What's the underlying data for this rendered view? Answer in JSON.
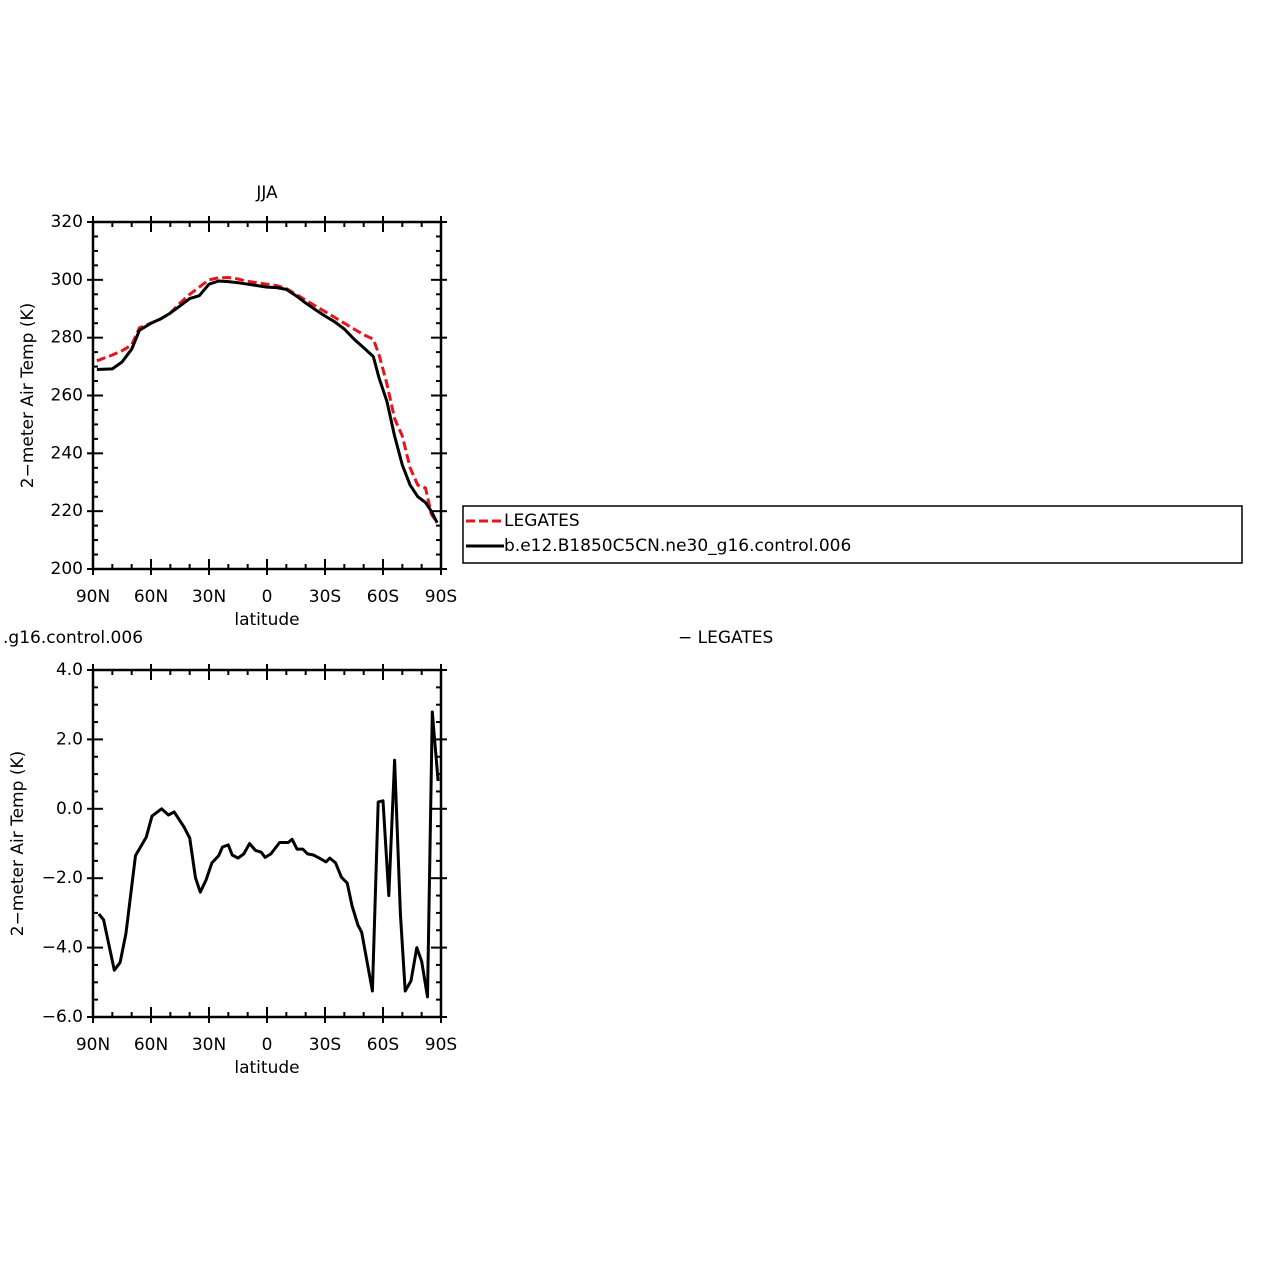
{
  "chart_data": [
    {
      "type": "line",
      "title": "JJA",
      "ylabel": "2−meter Air Temp (K)",
      "xlabel": "latitude",
      "x": [
        88,
        80,
        75,
        70,
        66,
        60,
        55,
        50,
        45,
        40,
        35,
        30,
        25,
        20,
        15,
        10,
        5,
        0,
        -5,
        -10,
        -15,
        -20,
        -25,
        -30,
        -35,
        -40,
        -45,
        -50,
        -55,
        -58,
        -62,
        -66,
        -70,
        -74,
        -78,
        -82,
        -85,
        -88
      ],
      "xlim": [
        90,
        -90
      ],
      "xticks": [
        {
          "value": 90,
          "label": "90N"
        },
        {
          "value": 60,
          "label": "60N"
        },
        {
          "value": 30,
          "label": "30N"
        },
        0,
        {
          "value": -30,
          "label": "30S"
        },
        {
          "value": -60,
          "label": "60S"
        },
        {
          "value": -90,
          "label": "90S"
        }
      ],
      "ylim": [
        200,
        320
      ],
      "yticks": [
        200,
        220,
        240,
        260,
        280,
        300,
        320
      ],
      "legend": "right",
      "series": [
        {
          "name": "LEGATES",
          "color": "#e8141b",
          "dashed": true,
          "values": [
            272,
            274,
            275.5,
            277.5,
            283.4,
            285,
            286.5,
            288.5,
            292,
            295,
            297.5,
            300,
            300.7,
            300.8,
            300.3,
            299.5,
            299,
            298.5,
            298,
            297,
            295,
            293,
            291,
            289,
            287,
            285,
            283,
            281,
            279.5,
            274,
            264,
            252,
            246,
            235,
            229,
            228,
            219,
            216
          ]
        },
        {
          "name": "b.e12.B1850C5CN.ne30_g16.control.006",
          "color": "#000000",
          "dashed": false,
          "values": [
            269,
            269.2,
            271.6,
            276,
            282.5,
            285,
            286.5,
            288.5,
            291,
            293.5,
            294.5,
            298.5,
            299.6,
            299.4,
            299,
            298.5,
            298,
            297.5,
            297.3,
            296.7,
            294.5,
            292,
            289.7,
            287.5,
            285.5,
            283,
            279.5,
            276.5,
            273.5,
            266,
            258,
            246,
            236,
            229,
            225,
            223,
            220,
            216
          ]
        }
      ]
    },
    {
      "type": "line",
      "title_left": ".g16.control.006",
      "title_right": "− LEGATES",
      "ylabel": "2−meter Air Temp (K)",
      "xlabel": "latitude",
      "x": [
        87,
        84.5,
        79,
        76,
        73,
        68,
        62.5,
        59.5,
        54.5,
        51,
        48,
        43,
        40,
        37,
        34.5,
        31.5,
        28.5,
        25,
        23,
        20,
        18,
        15,
        12,
        9,
        6,
        3,
        1,
        -2,
        -6.5,
        -11,
        -13,
        -15.5,
        -18.5,
        -21,
        -24,
        -27,
        -30.5,
        -32.5,
        -35.5,
        -38.5,
        -41.5,
        -44,
        -47,
        -49,
        -54.5,
        -57.5,
        -60,
        -63,
        -66,
        -69,
        -71.5,
        -74.5,
        -77.5,
        -80,
        -83,
        -85.5,
        -88.5
      ],
      "xlim": [
        90,
        -90
      ],
      "xticks": [
        {
          "value": 90,
          "label": "90N"
        },
        {
          "value": 60,
          "label": "60N"
        },
        {
          "value": 30,
          "label": "30N"
        },
        0,
        {
          "value": -30,
          "label": "30S"
        },
        {
          "value": -60,
          "label": "60S"
        },
        {
          "value": -90,
          "label": "90S"
        }
      ],
      "ylim": [
        -6,
        4
      ],
      "yticks": [
        {
          "value": -6,
          "label": "−6.0"
        },
        {
          "value": -4,
          "label": "−4.0"
        },
        {
          "value": -2,
          "label": "−2.0"
        },
        {
          "value": 0,
          "label": "0.0"
        },
        {
          "value": 2,
          "label": "2.0"
        },
        {
          "value": 4,
          "label": "4.0"
        }
      ],
      "color": "#000000",
      "values": [
        -3.03,
        -3.2,
        -4.65,
        -4.43,
        -3.6,
        -1.35,
        -0.82,
        -0.21,
        0,
        -0.18,
        -0.09,
        -0.52,
        -0.84,
        -1.99,
        -2.4,
        -2.05,
        -1.56,
        -1.35,
        -1.1,
        -1.04,
        -1.33,
        -1.42,
        -1.3,
        -1.0,
        -1.2,
        -1.25,
        -1.4,
        -1.3,
        -0.97,
        -0.97,
        -0.88,
        -1.16,
        -1.16,
        -1.3,
        -1.33,
        -1.42,
        -1.53,
        -1.42,
        -1.56,
        -1.97,
        -2.14,
        -2.8,
        -3.35,
        -3.56,
        -5.25,
        0.2,
        0.23,
        -2.5,
        1.4,
        -3.03,
        -5.25,
        -4.96,
        -4.0,
        -4.4,
        -5.42,
        2.79,
        0.8
      ]
    }
  ]
}
